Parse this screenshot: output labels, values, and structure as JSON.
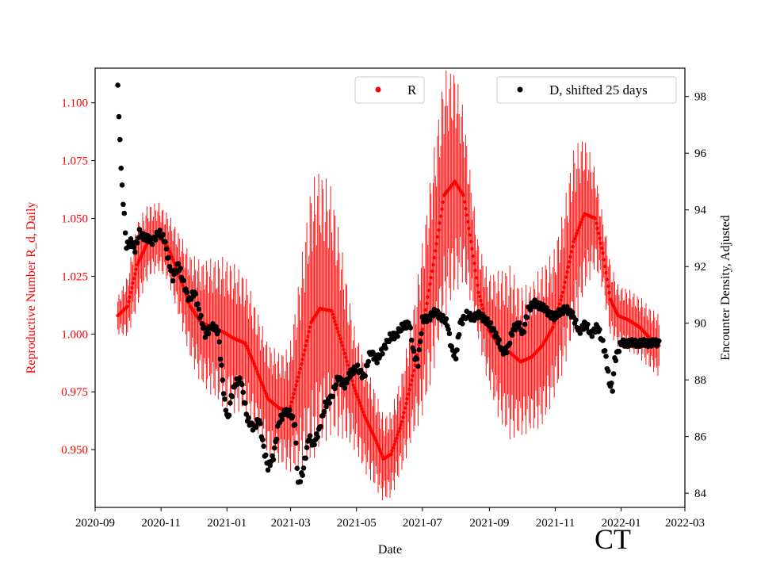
{
  "chart_data": {
    "type": "scatter",
    "xlabel": "Date",
    "y1label": "Reproductive Number R_d, Daily",
    "y2label": "Encounter Density, Adjusted",
    "state_label": "CT",
    "y1lim": [
      0.925,
      1.115
    ],
    "y2lim": [
      83.5,
      99.0
    ],
    "xlim": [
      "2020-09-01",
      "2022-03-01"
    ],
    "x_ticks": [
      "2020-09",
      "2020-11",
      "2021-01",
      "2021-03",
      "2021-05",
      "2021-07",
      "2021-09",
      "2021-11",
      "2022-01",
      "2022-03"
    ],
    "y1_ticks": [
      "0.950",
      "0.975",
      "1.000",
      "1.025",
      "1.050",
      "1.075",
      "1.100"
    ],
    "y2_ticks": [
      "84",
      "86",
      "88",
      "90",
      "92",
      "94",
      "96",
      "98"
    ],
    "colors": {
      "r_series": "#ff0000",
      "d_series": "#000000",
      "axis": "#000000"
    },
    "series": [
      {
        "name": "R",
        "axis": "left",
        "marker": "red-dot-with-errorbar",
        "points": [
          [
            "2020-09-22",
            1.008,
            0.006
          ],
          [
            "2020-10-01",
            1.012,
            0.01
          ],
          [
            "2020-10-10",
            1.03,
            0.014
          ],
          [
            "2020-10-20",
            1.04,
            0.012
          ],
          [
            "2020-10-30",
            1.042,
            0.011
          ],
          [
            "2020-11-08",
            1.037,
            0.011
          ],
          [
            "2020-11-18",
            1.025,
            0.014
          ],
          [
            "2020-11-28",
            1.012,
            0.017
          ],
          [
            "2020-12-08",
            1.005,
            0.02
          ],
          [
            "2020-12-18",
            1.003,
            0.022
          ],
          [
            "2020-12-28",
            1.001,
            0.024
          ],
          [
            "2021-01-08",
            0.998,
            0.024
          ],
          [
            "2021-01-18",
            0.996,
            0.022
          ],
          [
            "2021-01-28",
            0.985,
            0.02
          ],
          [
            "2021-02-08",
            0.972,
            0.018
          ],
          [
            "2021-02-18",
            0.968,
            0.018
          ],
          [
            "2021-02-28",
            0.967,
            0.02
          ],
          [
            "2021-03-10",
            0.985,
            0.032
          ],
          [
            "2021-03-20",
            1.005,
            0.045
          ],
          [
            "2021-03-28",
            1.011,
            0.045
          ],
          [
            "2021-04-08",
            1.01,
            0.04
          ],
          [
            "2021-04-18",
            0.995,
            0.03
          ],
          [
            "2021-04-28",
            0.978,
            0.02
          ],
          [
            "2021-05-08",
            0.965,
            0.018
          ],
          [
            "2021-05-18",
            0.955,
            0.016
          ],
          [
            "2021-05-26",
            0.946,
            0.014
          ],
          [
            "2021-06-02",
            0.948,
            0.014
          ],
          [
            "2021-06-12",
            0.962,
            0.016
          ],
          [
            "2021-06-22",
            0.982,
            0.02
          ],
          [
            "2021-07-01",
            1.002,
            0.028
          ],
          [
            "2021-07-11",
            1.03,
            0.035
          ],
          [
            "2021-07-21",
            1.06,
            0.04
          ],
          [
            "2021-07-31",
            1.066,
            0.036
          ],
          [
            "2021-08-08",
            1.06,
            0.028
          ],
          [
            "2021-08-15",
            1.04,
            0.02
          ],
          [
            "2021-08-22",
            1.018,
            0.016
          ],
          [
            "2021-08-31",
            1.002,
            0.018
          ],
          [
            "2021-09-10",
            0.995,
            0.024
          ],
          [
            "2021-09-20",
            0.992,
            0.028
          ],
          [
            "2021-09-30",
            0.988,
            0.024
          ],
          [
            "2021-10-10",
            0.99,
            0.024
          ],
          [
            "2021-10-20",
            0.995,
            0.026
          ],
          [
            "2021-10-30",
            1.003,
            0.024
          ],
          [
            "2021-11-08",
            1.018,
            0.026
          ],
          [
            "2021-11-18",
            1.04,
            0.03
          ],
          [
            "2021-11-28",
            1.052,
            0.025
          ],
          [
            "2021-12-08",
            1.05,
            0.016
          ],
          [
            "2021-12-15",
            1.035,
            0.012
          ],
          [
            "2021-12-22",
            1.015,
            0.012
          ],
          [
            "2021-12-29",
            1.008,
            0.01
          ],
          [
            "2022-01-08",
            1.006,
            0.01
          ],
          [
            "2022-01-18",
            1.003,
            0.01
          ],
          [
            "2022-01-28",
            0.998,
            0.01
          ],
          [
            "2022-02-05",
            0.995,
            0.01
          ]
        ]
      },
      {
        "name": "D, shifted 25 days",
        "axis": "right",
        "marker": "black-dot",
        "points": [
          [
            "2020-09-22",
            98.4
          ],
          [
            "2020-09-23",
            97.2
          ],
          [
            "2020-09-24",
            96.6
          ],
          [
            "2020-09-25",
            95.4
          ],
          [
            "2020-09-27",
            94.3
          ],
          [
            "2020-09-30",
            92.7
          ],
          [
            "2020-10-04",
            92.9
          ],
          [
            "2020-10-08",
            92.6
          ],
          [
            "2020-10-12",
            93.2
          ],
          [
            "2020-10-18",
            93.0
          ],
          [
            "2020-10-24",
            92.9
          ],
          [
            "2020-10-30",
            93.2
          ],
          [
            "2020-11-04",
            93.0
          ],
          [
            "2020-11-08",
            92.2
          ],
          [
            "2020-11-12",
            91.6
          ],
          [
            "2020-11-17",
            92.1
          ],
          [
            "2020-11-22",
            91.4
          ],
          [
            "2020-11-27",
            90.8
          ],
          [
            "2020-12-02",
            91.1
          ],
          [
            "2020-12-07",
            90.3
          ],
          [
            "2020-12-12",
            89.6
          ],
          [
            "2020-12-18",
            89.9
          ],
          [
            "2020-12-24",
            89.7
          ],
          [
            "2020-12-28",
            88.0
          ],
          [
            "2020-12-30",
            87.2
          ],
          [
            "2021-01-02",
            86.6
          ],
          [
            "2021-01-05",
            87.4
          ],
          [
            "2021-01-09",
            87.9
          ],
          [
            "2021-01-14",
            88.0
          ],
          [
            "2021-01-20",
            86.6
          ],
          [
            "2021-01-26",
            86.3
          ],
          [
            "2021-01-31",
            86.6
          ],
          [
            "2021-02-04",
            85.6
          ],
          [
            "2021-02-08",
            84.9
          ],
          [
            "2021-02-13",
            85.3
          ],
          [
            "2021-02-18",
            86.5
          ],
          [
            "2021-02-24",
            86.9
          ],
          [
            "2021-03-01",
            86.8
          ],
          [
            "2021-03-05",
            86.4
          ],
          [
            "2021-03-08",
            84.3
          ],
          [
            "2021-03-12",
            84.7
          ],
          [
            "2021-03-18",
            86.0
          ],
          [
            "2021-03-22",
            85.7
          ],
          [
            "2021-03-28",
            86.3
          ],
          [
            "2021-04-02",
            87.1
          ],
          [
            "2021-04-08",
            87.4
          ],
          [
            "2021-04-14",
            88.1
          ],
          [
            "2021-04-20",
            87.8
          ],
          [
            "2021-04-26",
            88.3
          ],
          [
            "2021-05-02",
            88.4
          ],
          [
            "2021-05-08",
            88.1
          ],
          [
            "2021-05-14",
            89.0
          ],
          [
            "2021-05-20",
            88.7
          ],
          [
            "2021-05-26",
            89.1
          ],
          [
            "2021-06-01",
            89.5
          ],
          [
            "2021-06-07",
            89.6
          ],
          [
            "2021-06-13",
            89.9
          ],
          [
            "2021-06-19",
            90.0
          ],
          [
            "2021-06-23",
            88.9
          ],
          [
            "2021-06-27",
            88.6
          ],
          [
            "2021-07-01",
            90.1
          ],
          [
            "2021-07-07",
            90.2
          ],
          [
            "2021-07-13",
            90.4
          ],
          [
            "2021-07-19",
            90.2
          ],
          [
            "2021-07-24",
            90.0
          ],
          [
            "2021-07-28",
            89.1
          ],
          [
            "2021-08-01",
            88.8
          ],
          [
            "2021-08-05",
            90.0
          ],
          [
            "2021-08-11",
            90.3
          ],
          [
            "2021-08-17",
            90.2
          ],
          [
            "2021-08-23",
            90.3
          ],
          [
            "2021-08-29",
            90.1
          ],
          [
            "2021-09-04",
            89.8
          ],
          [
            "2021-09-08",
            89.5
          ],
          [
            "2021-09-13",
            89.0
          ],
          [
            "2021-09-18",
            89.1
          ],
          [
            "2021-09-23",
            89.8
          ],
          [
            "2021-09-28",
            90.0
          ],
          [
            "2021-10-02",
            89.6
          ],
          [
            "2021-10-07",
            90.5
          ],
          [
            "2021-10-13",
            90.7
          ],
          [
            "2021-10-19",
            90.6
          ],
          [
            "2021-10-25",
            90.4
          ],
          [
            "2021-10-31",
            90.2
          ],
          [
            "2021-11-05",
            90.4
          ],
          [
            "2021-11-11",
            90.5
          ],
          [
            "2021-11-17",
            90.3
          ],
          [
            "2021-11-23",
            89.7
          ],
          [
            "2021-11-29",
            90.0
          ],
          [
            "2021-12-04",
            89.6
          ],
          [
            "2021-12-10",
            89.9
          ],
          [
            "2021-12-15",
            89.3
          ],
          [
            "2021-12-18",
            88.8
          ],
          [
            "2021-12-21",
            87.9
          ],
          [
            "2021-12-24",
            87.7
          ],
          [
            "2021-12-26",
            88.7
          ],
          [
            "2022-01-01",
            89.3
          ],
          [
            "2022-01-08",
            89.3
          ],
          [
            "2022-01-15",
            89.3
          ],
          [
            "2022-01-22",
            89.3
          ],
          [
            "2022-01-29",
            89.3
          ],
          [
            "2022-02-05",
            89.3
          ]
        ]
      }
    ]
  },
  "legend": {
    "r_label": "R",
    "d_label": "D, shifted 25 days"
  }
}
